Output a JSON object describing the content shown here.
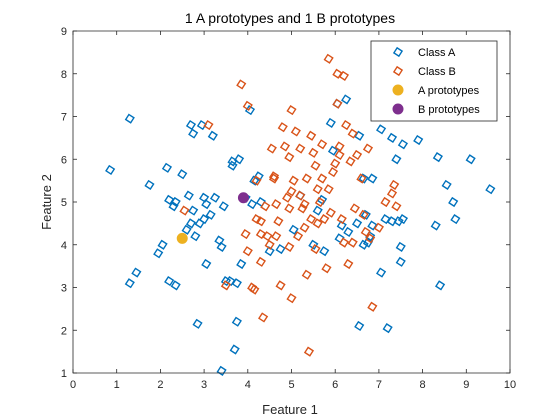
{
  "chart_data": {
    "type": "scatter",
    "title": "1 A prototypes and 1 B prototypes",
    "xlabel": "Feature 1",
    "ylabel": "Feature 2",
    "xlim": [
      0,
      10
    ],
    "ylim": [
      1,
      9
    ],
    "xticks": [
      0,
      1,
      2,
      3,
      4,
      5,
      6,
      7,
      8,
      9,
      10
    ],
    "yticks": [
      1,
      2,
      3,
      4,
      5,
      6,
      7,
      8,
      9
    ],
    "grid": false,
    "legend_position": "top-right",
    "series": [
      {
        "name": "Class A",
        "marker": "diamond-open",
        "color": "#0072BD",
        "points": [
          [
            0.85,
            5.75
          ],
          [
            1.3,
            6.95
          ],
          [
            1.3,
            3.1
          ],
          [
            1.45,
            3.35
          ],
          [
            1.75,
            5.4
          ],
          [
            1.95,
            3.8
          ],
          [
            2.05,
            4.0
          ],
          [
            2.15,
            5.8
          ],
          [
            2.2,
            3.15
          ],
          [
            2.2,
            5.05
          ],
          [
            2.3,
            4.9
          ],
          [
            2.35,
            3.05
          ],
          [
            2.35,
            5.0
          ],
          [
            2.5,
            5.65
          ],
          [
            2.6,
            4.35
          ],
          [
            2.65,
            5.15
          ],
          [
            2.7,
            6.8
          ],
          [
            2.7,
            4.5
          ],
          [
            2.75,
            6.6
          ],
          [
            2.75,
            4.8
          ],
          [
            2.8,
            4.2
          ],
          [
            2.85,
            2.15
          ],
          [
            2.9,
            4.5
          ],
          [
            2.95,
            6.8
          ],
          [
            3.0,
            5.1
          ],
          [
            3.0,
            4.6
          ],
          [
            3.05,
            3.55
          ],
          [
            3.05,
            4.95
          ],
          [
            3.15,
            4.7
          ],
          [
            3.2,
            6.55
          ],
          [
            3.25,
            5.1
          ],
          [
            3.35,
            4.1
          ],
          [
            3.4,
            1.05
          ],
          [
            3.4,
            3.95
          ],
          [
            3.45,
            4.9
          ],
          [
            3.5,
            3.15
          ],
          [
            3.6,
            3.15
          ],
          [
            3.65,
            5.95
          ],
          [
            3.65,
            5.85
          ],
          [
            3.7,
            1.55
          ],
          [
            3.75,
            3.1
          ],
          [
            3.75,
            2.2
          ],
          [
            3.8,
            6.0
          ],
          [
            3.85,
            3.55
          ],
          [
            3.95,
            5.1
          ],
          [
            4.05,
            7.15
          ],
          [
            4.1,
            4.95
          ],
          [
            4.15,
            5.5
          ],
          [
            4.25,
            5.6
          ],
          [
            4.3,
            5.0
          ],
          [
            4.5,
            3.85
          ],
          [
            4.75,
            3.9
          ],
          [
            5.05,
            4.35
          ],
          [
            5.2,
            5.15
          ],
          [
            5.5,
            4.0
          ],
          [
            5.6,
            4.8
          ],
          [
            5.7,
            5.05
          ],
          [
            5.75,
            3.85
          ],
          [
            5.9,
            6.85
          ],
          [
            5.95,
            6.2
          ],
          [
            6.05,
            7.3
          ],
          [
            6.1,
            4.15
          ],
          [
            6.15,
            4.45
          ],
          [
            6.25,
            7.4
          ],
          [
            6.3,
            4.3
          ],
          [
            6.5,
            4.5
          ],
          [
            6.55,
            6.55
          ],
          [
            6.55,
            2.1
          ],
          [
            6.65,
            5.55
          ],
          [
            6.65,
            4.0
          ],
          [
            6.7,
            4.7
          ],
          [
            6.75,
            4.05
          ],
          [
            6.8,
            4.2
          ],
          [
            6.85,
            5.55
          ],
          [
            6.85,
            4.45
          ],
          [
            7.05,
            6.7
          ],
          [
            7.05,
            3.35
          ],
          [
            7.15,
            4.6
          ],
          [
            7.2,
            2.05
          ],
          [
            7.3,
            4.55
          ],
          [
            7.3,
            6.5
          ],
          [
            7.4,
            6.0
          ],
          [
            7.45,
            4.55
          ],
          [
            7.5,
            3.95
          ],
          [
            7.5,
            3.6
          ],
          [
            7.55,
            6.35
          ],
          [
            7.55,
            4.6
          ],
          [
            7.9,
            6.45
          ],
          [
            8.3,
            4.45
          ],
          [
            8.35,
            6.05
          ],
          [
            8.4,
            3.05
          ],
          [
            8.55,
            5.4
          ],
          [
            8.7,
            5.0
          ],
          [
            8.75,
            4.6
          ],
          [
            9.1,
            6.0
          ],
          [
            9.55,
            5.3
          ]
        ]
      },
      {
        "name": "Class B",
        "marker": "diamond-open",
        "color": "#D95319",
        "points": [
          [
            2.55,
            4.8
          ],
          [
            3.1,
            6.8
          ],
          [
            3.5,
            3.05
          ],
          [
            3.85,
            7.75
          ],
          [
            3.95,
            4.25
          ],
          [
            4.0,
            7.25
          ],
          [
            4.0,
            3.85
          ],
          [
            4.1,
            3.0
          ],
          [
            4.15,
            2.95
          ],
          [
            4.2,
            4.6
          ],
          [
            4.2,
            5.5
          ],
          [
            4.3,
            4.25
          ],
          [
            4.3,
            3.6
          ],
          [
            4.35,
            2.3
          ],
          [
            4.45,
            4.2
          ],
          [
            4.5,
            4.0
          ],
          [
            4.55,
            6.25
          ],
          [
            4.6,
            5.55
          ],
          [
            4.65,
            4.2
          ],
          [
            4.65,
            4.95
          ],
          [
            4.7,
            4.55
          ],
          [
            4.75,
            3.05
          ],
          [
            4.8,
            6.75
          ],
          [
            4.85,
            6.3
          ],
          [
            4.9,
            5.1
          ],
          [
            4.95,
            4.85
          ],
          [
            4.95,
            6.05
          ],
          [
            5.0,
            7.15
          ],
          [
            5.0,
            2.75
          ],
          [
            5.0,
            5.25
          ],
          [
            5.05,
            5.5
          ],
          [
            5.1,
            6.65
          ],
          [
            5.15,
            4.2
          ],
          [
            5.2,
            5.15
          ],
          [
            5.25,
            4.85
          ],
          [
            5.3,
            4.4
          ],
          [
            5.35,
            5.55
          ],
          [
            5.35,
            3.3
          ],
          [
            5.4,
            1.5
          ],
          [
            5.45,
            6.55
          ],
          [
            5.45,
            4.6
          ],
          [
            5.5,
            6.15
          ],
          [
            5.55,
            5.85
          ],
          [
            5.6,
            5.3
          ],
          [
            5.6,
            4.5
          ],
          [
            5.65,
            5.0
          ],
          [
            5.7,
            5.55
          ],
          [
            5.7,
            6.35
          ],
          [
            5.75,
            4.6
          ],
          [
            5.8,
            3.45
          ],
          [
            5.85,
            5.3
          ],
          [
            5.9,
            4.75
          ],
          [
            5.95,
            5.7
          ],
          [
            6.0,
            5.9
          ],
          [
            6.05,
            7.3
          ],
          [
            6.05,
            8.0
          ],
          [
            6.1,
            6.3
          ],
          [
            6.15,
            4.6
          ],
          [
            6.2,
            4.05
          ],
          [
            6.25,
            6.8
          ],
          [
            6.3,
            3.55
          ],
          [
            6.35,
            5.95
          ],
          [
            6.4,
            6.6
          ],
          [
            6.45,
            4.85
          ],
          [
            6.5,
            6.1
          ],
          [
            6.6,
            5.55
          ],
          [
            6.65,
            4.7
          ],
          [
            6.7,
            4.3
          ],
          [
            6.75,
            6.25
          ],
          [
            6.8,
            4.15
          ],
          [
            6.85,
            2.55
          ],
          [
            7.0,
            4.4
          ],
          [
            7.15,
            5.0
          ],
          [
            7.3,
            5.2
          ],
          [
            7.35,
            5.4
          ],
          [
            7.4,
            4.9
          ],
          [
            5.85,
            8.35
          ],
          [
            6.2,
            7.95
          ],
          [
            4.95,
            3.95
          ],
          [
            5.55,
            3.9
          ],
          [
            4.6,
            5.6
          ],
          [
            5.2,
            6.25
          ],
          [
            4.4,
            4.9
          ],
          [
            5.3,
            4.95
          ],
          [
            4.3,
            4.55
          ],
          [
            6.4,
            4.05
          ],
          [
            6.1,
            6.1
          ]
        ]
      },
      {
        "name": "A prototypes",
        "marker": "circle-filled",
        "color": "#EDB120",
        "points": [
          [
            2.5,
            4.15
          ]
        ]
      },
      {
        "name": "B prototypes",
        "marker": "circle-filled",
        "color": "#7E2F8E",
        "points": [
          [
            3.9,
            5.1
          ]
        ]
      }
    ]
  }
}
